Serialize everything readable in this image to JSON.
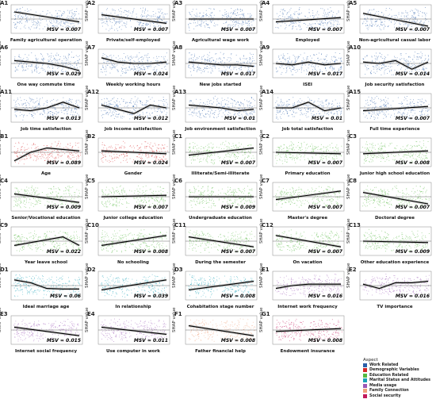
{
  "chart_data": [
    {
      "id": "A1",
      "type": "scatter",
      "xlabel": "Family agricultural operation",
      "ylabel": "SHAP value",
      "msv": "= 0.007",
      "aspect": "work",
      "trend": "line",
      "trend_y": [
        0.25,
        0.6
      ]
    },
    {
      "id": "A2",
      "type": "scatter",
      "xlabel": "Private/self-employed",
      "ylabel": "SHAP value",
      "msv": "= 0.007",
      "aspect": "work",
      "trend": "line",
      "trend_y": [
        0.35,
        0.65
      ]
    },
    {
      "id": "A3",
      "type": "scatter",
      "xlabel": "Agricultural wage work",
      "ylabel": "SHAP value",
      "msv": "= 0.007",
      "aspect": "work",
      "trend": "line",
      "trend_y": [
        0.5,
        0.5
      ]
    },
    {
      "id": "A4",
      "type": "scatter",
      "xlabel": "Employed",
      "ylabel": "SHAP value",
      "msv": "= 0.007",
      "aspect": "work",
      "trend": "line",
      "trend_y": [
        0.6,
        0.45
      ]
    },
    {
      "id": "A5",
      "type": "scatter",
      "xlabel": "Non-agricultural casual labor",
      "ylabel": "SHAP value",
      "msv": "= 0.007",
      "aspect": "work",
      "trend": "line",
      "trend_y": [
        0.3,
        0.75
      ]
    },
    {
      "id": "A6",
      "type": "scatter",
      "xlabel": "One way commute time",
      "ylabel": "SHAP value",
      "msv": "= 0.029",
      "aspect": "work",
      "trend": "curve",
      "trend_y": [
        0.4,
        0.45,
        0.5,
        0.6,
        0.75
      ]
    },
    {
      "id": "A7",
      "type": "scatter",
      "xlabel": "Weekly working hours",
      "ylabel": "SHAP value",
      "msv": "= 0.024",
      "aspect": "work",
      "trend": "curve",
      "trend_y": [
        0.3,
        0.45,
        0.5,
        0.5,
        0.45
      ]
    },
    {
      "id": "A8",
      "type": "scatter",
      "xlabel": "New jobs started",
      "ylabel": "SHAP value",
      "msv": "= 0.017",
      "aspect": "work",
      "trend": "curve",
      "trend_y": [
        0.45,
        0.5,
        0.55,
        0.55,
        0.6
      ]
    },
    {
      "id": "A9",
      "type": "scatter",
      "xlabel": "ISEI",
      "ylabel": "SHAP value",
      "msv": "= 0.017",
      "aspect": "work",
      "trend": "curve",
      "trend_y": [
        0.5,
        0.55,
        0.45,
        0.55,
        0.5
      ]
    },
    {
      "id": "A10",
      "type": "scatter",
      "xlabel": "Job security satisfaction",
      "ylabel": "SHAP value",
      "msv": "= 0.014",
      "aspect": "work",
      "trend": "curve",
      "trend_y": [
        0.45,
        0.5,
        0.4,
        0.7,
        0.45
      ]
    },
    {
      "id": "A11",
      "type": "scatter",
      "xlabel": "Job time satisfaction",
      "ylabel": "SHAP value",
      "msv": "= 0.013",
      "aspect": "work",
      "trend": "curve",
      "trend_y": [
        0.55,
        0.6,
        0.5,
        0.3,
        0.5
      ]
    },
    {
      "id": "A12",
      "type": "scatter",
      "xlabel": "Job income satisfaction",
      "ylabel": "SHAP value",
      "msv": "= 0.012",
      "aspect": "work",
      "trend": "curve",
      "trend_y": [
        0.4,
        0.55,
        0.7,
        0.4,
        0.5
      ]
    },
    {
      "id": "A13",
      "type": "scatter",
      "xlabel": "Job environment satisfaction",
      "ylabel": "SHAP value",
      "msv": "= 0.01",
      "aspect": "work",
      "trend": "curve",
      "trend_y": [
        0.4,
        0.45,
        0.5,
        0.6,
        0.55
      ]
    },
    {
      "id": "A14",
      "type": "scatter",
      "xlabel": "Job total satisfaction",
      "ylabel": "SHAP value",
      "msv": "= 0.01",
      "aspect": "work",
      "trend": "curve",
      "trend_y": [
        0.5,
        0.5,
        0.3,
        0.6,
        0.5
      ]
    },
    {
      "id": "A15",
      "type": "scatter",
      "xlabel": "Full time experience",
      "ylabel": "SHAP value",
      "msv": "= 0.007",
      "aspect": "work",
      "trend": "line",
      "trend_y": [
        0.6,
        0.45
      ]
    },
    {
      "id": "B1",
      "type": "scatter",
      "xlabel": "Age",
      "ylabel": "SHAP value",
      "msv": "= 0.089",
      "aspect": "demo",
      "trend": "curve",
      "trend_y": [
        0.8,
        0.5,
        0.35,
        0.4,
        0.45
      ]
    },
    {
      "id": "B2",
      "type": "scatter",
      "xlabel": "Gender",
      "ylabel": "SHAP value",
      "msv": "= 0.024",
      "aspect": "demo",
      "trend": "line",
      "trend_y": [
        0.45,
        0.55
      ]
    },
    {
      "id": "C1",
      "type": "scatter",
      "xlabel": "Illiterate/Semi-illiterate",
      "ylabel": "SHAP value",
      "msv": "= 0.007",
      "aspect": "edu",
      "trend": "line",
      "trend_y": [
        0.6,
        0.35
      ]
    },
    {
      "id": "C2",
      "type": "scatter",
      "xlabel": "Primary education",
      "ylabel": "SHAP value",
      "msv": "= 0.007",
      "aspect": "edu",
      "trend": "line",
      "trend_y": [
        0.5,
        0.55
      ]
    },
    {
      "id": "C3",
      "type": "scatter",
      "xlabel": "Junior high school education",
      "ylabel": "SHAP value",
      "msv": "= 0.008",
      "aspect": "edu",
      "trend": "line",
      "trend_y": [
        0.55,
        0.45
      ]
    },
    {
      "id": "C4",
      "type": "scatter",
      "xlabel": "Senior/Vocational education",
      "ylabel": "SHAP value",
      "msv": "= 0.009",
      "aspect": "edu",
      "trend": "line",
      "trend_y": [
        0.4,
        0.7
      ]
    },
    {
      "id": "C5",
      "type": "scatter",
      "xlabel": "Junior college education",
      "ylabel": "SHAP value",
      "msv": "= 0.007",
      "aspect": "edu",
      "trend": "line",
      "trend_y": [
        0.5,
        0.45
      ]
    },
    {
      "id": "C6",
      "type": "scatter",
      "xlabel": "Undergraduate education",
      "ylabel": "SHAP value",
      "msv": "= 0.009",
      "aspect": "edu",
      "trend": "line",
      "trend_y": [
        0.5,
        0.5
      ]
    },
    {
      "id": "C7",
      "type": "scatter",
      "xlabel": "Master's degree",
      "ylabel": "SHAP value",
      "msv": "= 0.007",
      "aspect": "edu",
      "trend": "line",
      "trend_y": [
        0.6,
        0.3
      ]
    },
    {
      "id": "C8",
      "type": "scatter",
      "xlabel": "Doctoral degree",
      "ylabel": "SHAP value",
      "msv": "= 0.007",
      "aspect": "edu",
      "trend": "line",
      "trend_y": [
        0.35,
        0.75
      ]
    },
    {
      "id": "C9",
      "type": "scatter",
      "xlabel": "Year leave school",
      "ylabel": "SHAP value",
      "msv": "= 0.022",
      "aspect": "edu",
      "trend": "curve",
      "trend_y": [
        0.65,
        0.55,
        0.45,
        0.35,
        0.65
      ]
    },
    {
      "id": "C10",
      "type": "scatter",
      "xlabel": "No schooling",
      "ylabel": "SHAP value",
      "msv": "= 0.008",
      "aspect": "edu",
      "trend": "line",
      "trend_y": [
        0.65,
        0.3
      ]
    },
    {
      "id": "C11",
      "type": "scatter",
      "xlabel": "During the semester",
      "ylabel": "SHAP value",
      "msv": "= 0.007",
      "aspect": "edu",
      "trend": "line",
      "trend_y": [
        0.35,
        0.7
      ]
    },
    {
      "id": "C12",
      "type": "scatter",
      "xlabel": "On vacation",
      "ylabel": "SHAP value",
      "msv": "= 0.007",
      "aspect": "edu",
      "trend": "line",
      "trend_y": [
        0.3,
        0.7
      ]
    },
    {
      "id": "C13",
      "type": "scatter",
      "xlabel": "Other education experience",
      "ylabel": "SHAP value",
      "msv": "= 0.009",
      "aspect": "edu",
      "trend": "line",
      "trend_y": [
        0.5,
        0.55
      ]
    },
    {
      "id": "D1",
      "type": "scatter",
      "xlabel": "Ideal marriage age",
      "ylabel": "SHAP value",
      "msv": "= 0.06",
      "aspect": "marital",
      "trend": "curve",
      "trend_y": [
        0.3,
        0.4,
        0.6,
        0.62,
        0.62
      ]
    },
    {
      "id": "D2",
      "type": "scatter",
      "xlabel": "In relationship",
      "ylabel": "SHAP value",
      "msv": "= 0.039",
      "aspect": "marital",
      "trend": "line",
      "trend_y": [
        0.65,
        0.3
      ]
    },
    {
      "id": "D3",
      "type": "scatter",
      "xlabel": "Cohabitation stage number",
      "ylabel": "SHAP value",
      "msv": "= 0.008",
      "aspect": "marital",
      "trend": "line",
      "trend_y": [
        0.65,
        0.35
      ]
    },
    {
      "id": "E1",
      "type": "scatter",
      "xlabel": "Internet work frequency",
      "ylabel": "SHAP value",
      "msv": "= 0.016",
      "aspect": "media",
      "trend": "curve",
      "trend_y": [
        0.6,
        0.5,
        0.45,
        0.45,
        0.45
      ]
    },
    {
      "id": "E2",
      "type": "scatter",
      "xlabel": "TV importance",
      "ylabel": "SHAP value",
      "msv": "= 0.016",
      "aspect": "media",
      "trend": "curve",
      "trend_y": [
        0.45,
        0.6,
        0.4,
        0.4,
        0.35
      ]
    },
    {
      "id": "E3",
      "type": "scatter",
      "xlabel": "Internet social frequency",
      "ylabel": "SHAP value",
      "msv": "= 0.015",
      "aspect": "media",
      "trend": "line",
      "trend_y": [
        0.4,
        0.7
      ]
    },
    {
      "id": "E4",
      "type": "scatter",
      "xlabel": "Use computer in work",
      "ylabel": "SHAP value",
      "msv": "= 0.011",
      "aspect": "media",
      "trend": "line",
      "trend_y": [
        0.4,
        0.65
      ]
    },
    {
      "id": "F1",
      "type": "scatter",
      "xlabel": "Father financial help",
      "ylabel": "SHAP value",
      "msv": "= 0.008",
      "aspect": "family",
      "trend": "line",
      "trend_y": [
        0.35,
        0.7
      ]
    },
    {
      "id": "G1",
      "type": "scatter",
      "xlabel": "Endowment insurance",
      "ylabel": "SHAP value",
      "msv": "= 0.008",
      "aspect": "social",
      "trend": "line",
      "trend_y": [
        0.55,
        0.45
      ]
    }
  ],
  "msv_prefix": "MSV",
  "legend": {
    "title": "Aspect",
    "items": [
      {
        "key": "work",
        "label": "Work Related",
        "color": "#2b5fa8"
      },
      {
        "key": "demo",
        "label": "Demographic Variables",
        "color": "#d62728"
      },
      {
        "key": "edu",
        "label": "Education Related",
        "color": "#55b842"
      },
      {
        "key": "marital",
        "label": "Marital Status and Attitudes",
        "color": "#1aa3b8"
      },
      {
        "key": "media",
        "label": "Media usage",
        "color": "#9b59b6"
      },
      {
        "key": "family",
        "label": "Family Connection",
        "color": "#f0a07a"
      },
      {
        "key": "social",
        "label": "Social security",
        "color": "#c2185b"
      }
    ]
  }
}
